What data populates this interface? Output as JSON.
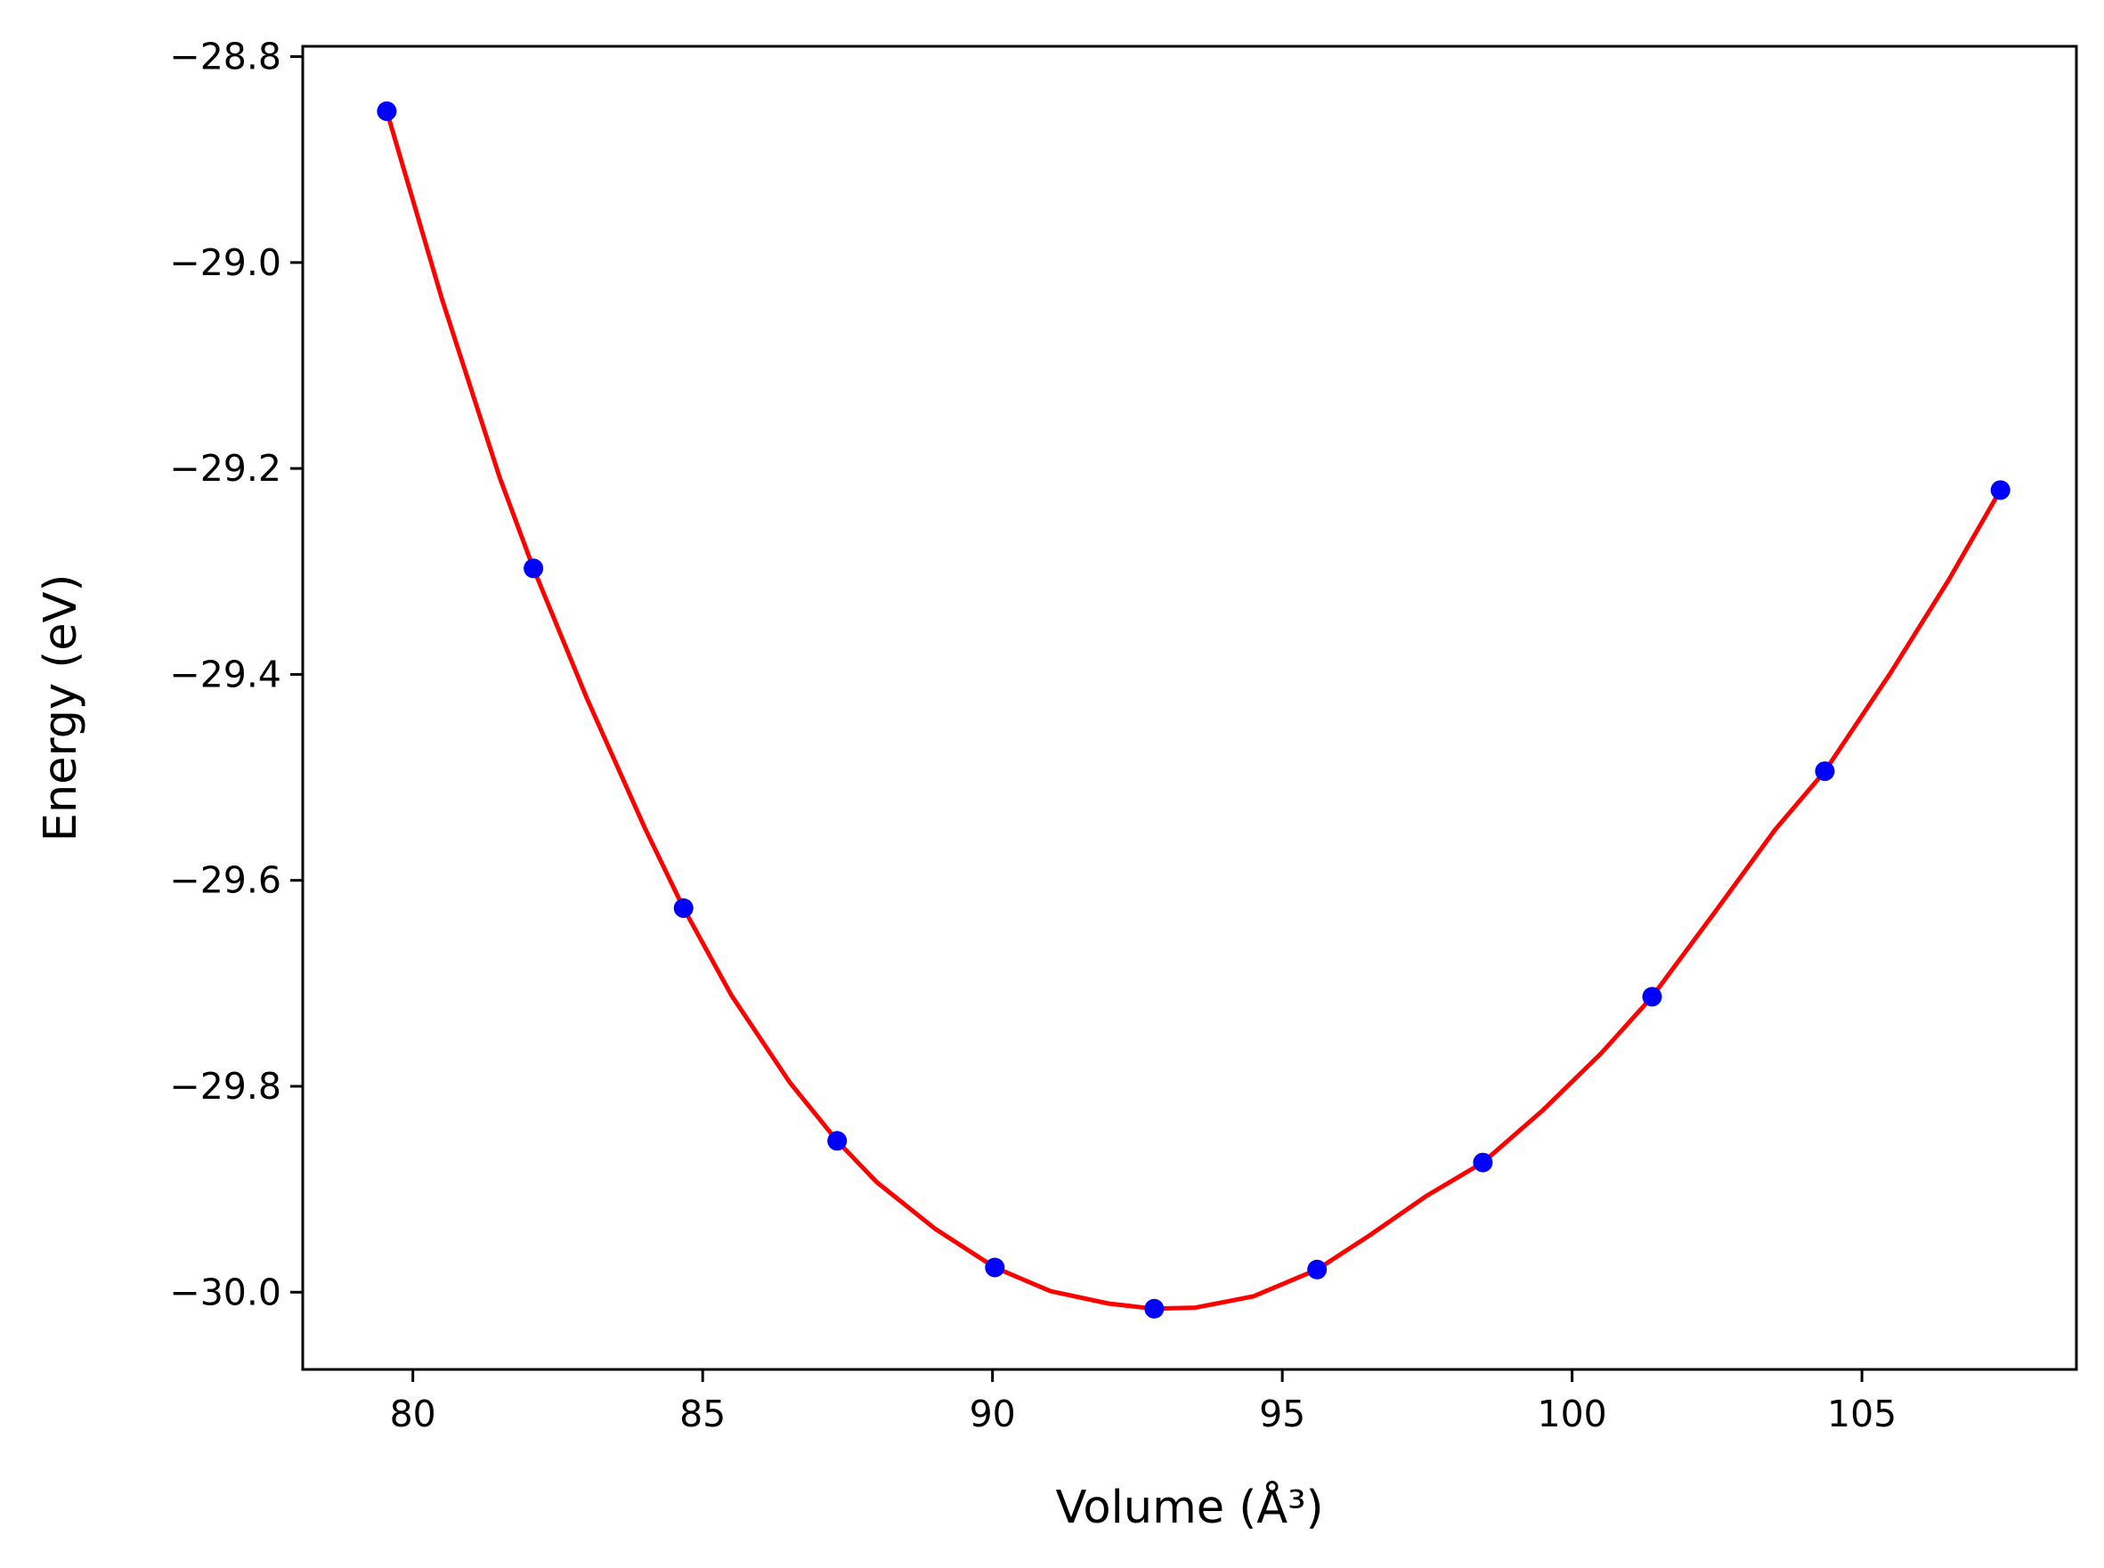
{
  "chart_data": {
    "type": "scatter",
    "title": "",
    "xlabel": "Volume (Å³)",
    "ylabel": "Energy (eV)",
    "xlim": [
      78.1,
      108.7
    ],
    "ylim": [
      -30.075,
      -28.79
    ],
    "x_ticks": [
      80,
      85,
      90,
      95,
      100,
      105
    ],
    "x_tick_labels": [
      "80",
      "85",
      "90",
      "95",
      "100",
      "105"
    ],
    "y_ticks": [
      -28.8,
      -29.0,
      -29.2,
      -29.4,
      -29.6,
      -29.8,
      -30.0
    ],
    "y_tick_labels": [
      "−28.8",
      "−29.0",
      "−29.2",
      "−29.4",
      "−29.6",
      "−29.8",
      "−30.0"
    ],
    "grid": false,
    "series": [
      {
        "kind": "points",
        "color": "#0000ff",
        "x": [
          79.55,
          82.08,
          84.67,
          87.32,
          90.04,
          92.79,
          95.6,
          98.46,
          101.38,
          104.36,
          107.39
        ],
        "y": [
          -28.853,
          -29.297,
          -29.627,
          -29.853,
          -29.976,
          -30.016,
          -29.978,
          -29.874,
          -29.713,
          -29.494,
          -29.221
        ]
      },
      {
        "kind": "fit-curve",
        "color": "#ff0000",
        "x": [
          79.55,
          80.5,
          81.5,
          82.08,
          83.0,
          84.0,
          84.67,
          85.5,
          86.5,
          87.32,
          88.0,
          89.0,
          90.04,
          91.0,
          92.0,
          92.79,
          93.5,
          94.5,
          95.6,
          96.5,
          97.5,
          98.46,
          99.5,
          100.5,
          101.38,
          102.5,
          103.5,
          104.36,
          105.5,
          106.5,
          107.39
        ],
        "y": [
          -28.853,
          -29.035,
          -29.209,
          -29.297,
          -29.423,
          -29.549,
          -29.627,
          -29.712,
          -29.796,
          -29.853,
          -29.893,
          -29.938,
          -29.976,
          -29.999,
          -30.011,
          -30.016,
          -30.015,
          -30.004,
          -29.978,
          -29.945,
          -29.906,
          -29.874,
          -29.823,
          -29.768,
          -29.713,
          -29.628,
          -29.551,
          -29.494,
          -29.398,
          -29.308,
          -29.221
        ]
      }
    ]
  }
}
